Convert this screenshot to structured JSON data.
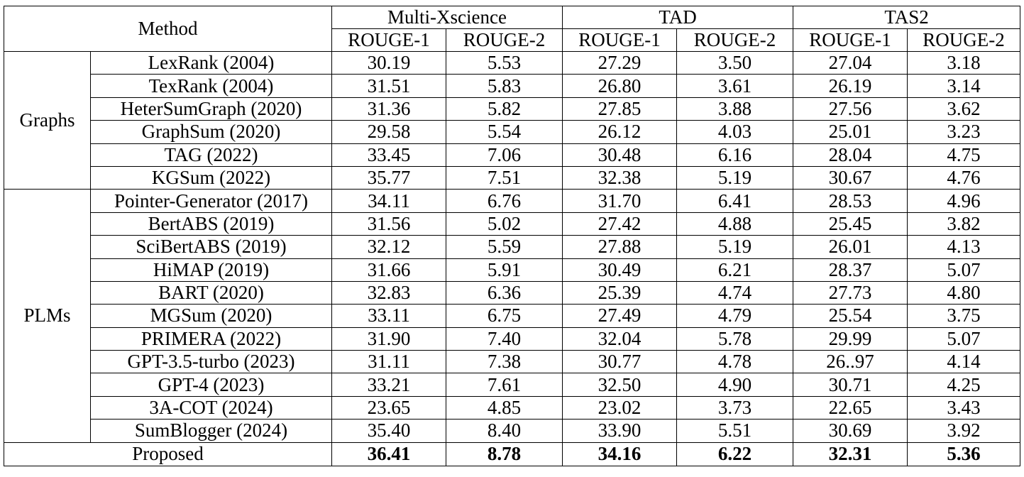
{
  "header": {
    "method": "Method",
    "datasets": [
      "Multi-Xscience",
      "TAD",
      "TAS2"
    ],
    "metrics": [
      "ROUGE-1",
      "ROUGE-2",
      "ROUGE-1",
      "ROUGE-2",
      "ROUGE-1",
      "ROUGE-2"
    ]
  },
  "groups": {
    "graphs": "Graphs",
    "plms": "PLMs"
  },
  "rows": [
    {
      "name": "LexRank (2004)",
      "v": [
        "30.19",
        "5.53",
        "27.29",
        "3.50",
        "27.04",
        "3.18"
      ]
    },
    {
      "name": "TexRank (2004)",
      "v": [
        "31.51",
        "5.83",
        "26.80",
        "3.61",
        "26.19",
        "3.14"
      ]
    },
    {
      "name": "HeterSumGraph (2020)",
      "v": [
        "31.36",
        "5.82",
        "27.85",
        "3.88",
        "27.56",
        "3.62"
      ]
    },
    {
      "name": "GraphSum (2020)",
      "v": [
        "29.58",
        "5.54",
        "26.12",
        "4.03",
        "25.01",
        "3.23"
      ]
    },
    {
      "name": "TAG (2022)",
      "v": [
        "33.45",
        "7.06",
        "30.48",
        "6.16",
        "28.04",
        "4.75"
      ]
    },
    {
      "name": "KGSum (2022)",
      "v": [
        "35.77",
        "7.51",
        "32.38",
        "5.19",
        "30.67",
        "4.76"
      ]
    },
    {
      "name": "Pointer-Generator (2017)",
      "v": [
        "34.11",
        "6.76",
        "31.70",
        "6.41",
        "28.53",
        "4.96"
      ]
    },
    {
      "name": "BertABS (2019)",
      "v": [
        "31.56",
        "5.02",
        "27.42",
        "4.88",
        "25.45",
        "3.82"
      ]
    },
    {
      "name": "SciBertABS (2019)",
      "v": [
        "32.12",
        "5.59",
        "27.88",
        "5.19",
        "26.01",
        "4.13"
      ]
    },
    {
      "name": "HiMAP (2019)",
      "v": [
        "31.66",
        "5.91",
        "30.49",
        "6.21",
        "28.37",
        "5.07"
      ]
    },
    {
      "name": "BART (2020)",
      "v": [
        "32.83",
        "6.36",
        "25.39",
        "4.74",
        "27.73",
        "4.80"
      ]
    },
    {
      "name": "MGSum (2020)",
      "v": [
        "33.11",
        "6.75",
        "27.49",
        "4.79",
        "25.54",
        "3.75"
      ]
    },
    {
      "name": "PRIMERA (2022)",
      "v": [
        "31.90",
        "7.40",
        "32.04",
        "5.78",
        "29.99",
        "5.07"
      ]
    },
    {
      "name": "GPT-3.5-turbo (2023)",
      "v": [
        "31.11",
        "7.38",
        "30.77",
        "4.78",
        "26..97",
        "4.14"
      ]
    },
    {
      "name": "GPT-4 (2023)",
      "v": [
        "33.21",
        "7.61",
        "32.50",
        "4.90",
        "30.71",
        "4.25"
      ]
    },
    {
      "name": "3A-COT (2024)",
      "v": [
        "23.65",
        "4.85",
        "23.02",
        "3.73",
        "22.65",
        "3.43"
      ]
    },
    {
      "name": "SumBlogger (2024)",
      "v": [
        "35.40",
        "8.40",
        "33.90",
        "5.51",
        "30.69",
        "3.92"
      ]
    }
  ],
  "proposed": {
    "name": "Proposed",
    "v": [
      "36.41",
      "8.78",
      "34.16",
      "6.22",
      "32.31",
      "5.36"
    ]
  }
}
